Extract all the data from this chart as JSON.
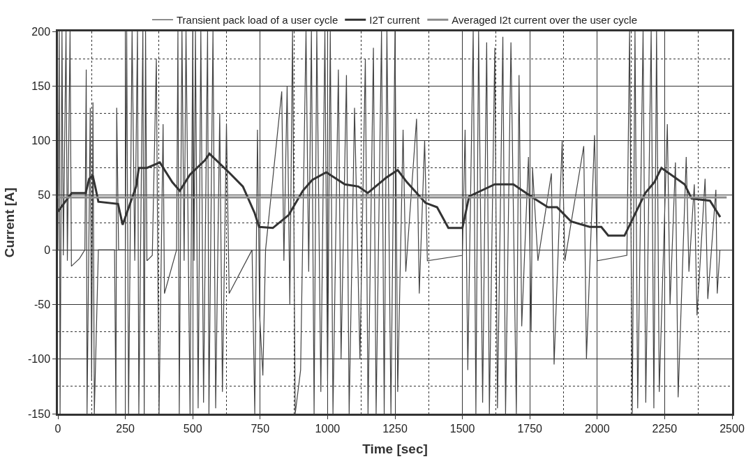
{
  "chart_data": {
    "type": "line",
    "xlabel": "Time [sec]",
    "ylabel": "Current [A]",
    "xlim": [
      0,
      2500
    ],
    "xticks": [
      0,
      250,
      500,
      750,
      1000,
      1250,
      1500,
      1750,
      2000,
      2250,
      2500
    ],
    "ylim": [
      -150,
      200
    ],
    "yticks": [
      -150,
      -100,
      -50,
      0,
      50,
      100,
      150,
      200
    ],
    "grid": true,
    "legend": "top",
    "marker": "none",
    "line_style": "solid",
    "series": [
      {
        "name": "Transient pack load of a user cycle",
        "color": "#444444",
        "x": [
          0,
          5,
          8,
          15,
          20,
          30,
          35,
          45,
          50,
          80,
          100,
          105,
          108,
          120,
          125,
          130,
          135,
          150,
          210,
          215,
          218,
          225,
          250,
          255,
          262,
          275,
          285,
          295,
          300,
          315,
          320,
          325,
          330,
          350,
          365,
          370,
          375,
          390,
          395,
          440,
          445,
          450,
          460,
          468,
          475,
          490,
          500,
          505,
          510,
          520,
          530,
          540,
          555,
          560,
          575,
          585,
          600,
          610,
          625,
          635,
          720,
          730,
          740,
          748,
          760,
          770,
          830,
          838,
          850,
          860,
          870,
          880,
          900,
          920,
          930,
          940,
          950,
          960,
          975,
          990,
          1000,
          1010,
          1020,
          1040,
          1050,
          1070,
          1080,
          1100,
          1120,
          1140,
          1150,
          1170,
          1180,
          1200,
          1210,
          1220,
          1235,
          1250,
          1260,
          1280,
          1290,
          1330,
          1340,
          1360,
          1370,
          1500,
          1510,
          1520,
          1540,
          1550,
          1560,
          1575,
          1590,
          1600,
          1620,
          1630,
          1650,
          1660,
          1680,
          1700,
          1710,
          1720,
          1745,
          1755,
          1760,
          1780,
          1830,
          1840,
          1870,
          1880,
          1950,
          1960,
          1990,
          2000,
          2110,
          2120,
          2130,
          2140,
          2150,
          2170,
          2180,
          2200,
          2210,
          2220,
          2230,
          2260,
          2270,
          2290,
          2300,
          2330,
          2340,
          2360,
          2370,
          2400,
          2410,
          2440,
          2445,
          2455
        ],
        "values": [
          0,
          200,
          -150,
          200,
          -5,
          200,
          -10,
          200,
          -15,
          -8,
          0,
          165,
          -150,
          130,
          -120,
          135,
          -150,
          0,
          0,
          -150,
          130,
          0,
          0,
          200,
          -150,
          200,
          -10,
          200,
          -150,
          200,
          -150,
          200,
          -10,
          -5,
          175,
          0,
          -150,
          115,
          -40,
          0,
          200,
          -150,
          200,
          -10,
          200,
          -150,
          200,
          -10,
          200,
          -145,
          200,
          -140,
          200,
          -150,
          200,
          -145,
          125,
          -130,
          115,
          -40,
          0,
          -150,
          110,
          -60,
          -115,
          0,
          145,
          -10,
          150,
          -50,
          200,
          -150,
          -110,
          200,
          -20,
          200,
          -150,
          200,
          -130,
          200,
          -120,
          200,
          -150,
          165,
          -100,
          160,
          -150,
          130,
          -100,
          175,
          -150,
          185,
          -150,
          200,
          -150,
          200,
          -150,
          200,
          -130,
          110,
          -20,
          120,
          -40,
          100,
          -10,
          -5,
          110,
          -110,
          200,
          -150,
          200,
          -140,
          190,
          -150,
          185,
          -145,
          195,
          -150,
          190,
          -150,
          160,
          -70,
          85,
          -75,
          75,
          -10,
          70,
          -105,
          100,
          -10,
          95,
          -100,
          105,
          -10,
          -5,
          200,
          -150,
          200,
          -145,
          200,
          -140,
          200,
          -145,
          200,
          -130,
          115,
          -50,
          80,
          -135,
          85,
          -20,
          60,
          -60,
          65,
          -45,
          55,
          -40,
          0
        ]
      },
      {
        "name": "I2T current",
        "color": "#333333",
        "x": [
          0,
          51,
          103,
          116,
          129,
          140,
          150,
          223,
          240,
          290,
          300,
          330,
          378,
          424,
          452,
          490,
          545,
          562,
          634,
          686,
          729,
          746,
          797,
          856,
          908,
          943,
          995,
          1064,
          1114,
          1149,
          1217,
          1260,
          1294,
          1363,
          1406,
          1448,
          1500,
          1525,
          1620,
          1689,
          1766,
          1817,
          1851,
          1903,
          1972,
          2015,
          2041,
          2101,
          2178,
          2212,
          2238,
          2324,
          2350,
          2418,
          2456
        ],
        "values": [
          35,
          52,
          52,
          65,
          68,
          56,
          44,
          42,
          23,
          58,
          75,
          75,
          80,
          62,
          54,
          69,
          82,
          88,
          71,
          58,
          34,
          21,
          20,
          32,
          54,
          64,
          71,
          60,
          58,
          52,
          66,
          73,
          62,
          43,
          39,
          20,
          20,
          49,
          60,
          60,
          47,
          39,
          39,
          26,
          21,
          21,
          13,
          13,
          52,
          62,
          75,
          60,
          47,
          45,
          30
        ]
      },
      {
        "name": "Averaged I2t current over the user cycle",
        "color": "#8c8c8c",
        "x": [
          0,
          2480
        ],
        "values": [
          48,
          48
        ]
      }
    ]
  }
}
